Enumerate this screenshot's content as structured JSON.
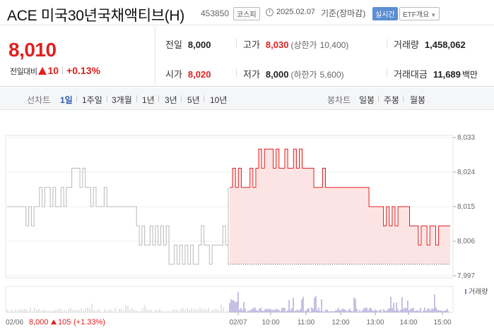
{
  "header": {
    "title": "ACE 미국30년국채액티브(H)",
    "code": "453850",
    "market": "코스피",
    "date": "2025.02.07",
    "base_label": "기준(장마감)",
    "realtime": "실시간",
    "etf_overview": "ETF개요"
  },
  "summary": {
    "price": "8,010",
    "change_label": "전일대비",
    "change_value": "10",
    "change_pct": "+0.13%",
    "prev_close_label": "전일",
    "prev_close": "8,000",
    "high_label": "고가",
    "high": "8,030",
    "upper_limit_label": "(상한가",
    "upper_limit": "10,400)",
    "volume_label": "거래량",
    "volume": "1,458,062",
    "open_label": "시가",
    "open": "8,020",
    "low_label": "저가",
    "low": "8,000",
    "lower_limit_label": "(하한가",
    "lower_limit": "5,600)",
    "amount_label": "거래대금",
    "amount": "11,689",
    "amount_unit": "백만"
  },
  "tabs": {
    "line_chart_label": "선차트",
    "periods": [
      "1일",
      "1주일",
      "3개월",
      "1년",
      "3년",
      "5년",
      "10년"
    ],
    "candle_label": "봉차트",
    "candles": [
      "일봉",
      "주봉",
      "월봉"
    ]
  },
  "colors": {
    "up": "#e02020",
    "prev_day_line": "#b9b9b9",
    "fill": "#fde4e4",
    "volume": "#8b83c9",
    "tab_active": "#2f5fb3"
  },
  "chart_data": {
    "type": "line",
    "y_ticks": [
      "8,033",
      "8,024",
      "8,015",
      "8,006",
      "7,997"
    ],
    "ylim": [
      7997,
      8033
    ],
    "x_ticks": [
      "02/07",
      "10:00",
      "11:00",
      "12:00",
      "13:00",
      "14:00",
      "15:00"
    ],
    "baseline": 8000,
    "volume_label": "거래량",
    "prev_day": {
      "date_label": "02/06",
      "close": "8,000",
      "change": "105",
      "change_pct": "(+1.33%)",
      "values": [
        8015,
        8015,
        8015,
        8015,
        8015,
        8015,
        8015,
        8010,
        8015,
        8010,
        8015,
        8015,
        8020,
        8015,
        8020,
        8020,
        8015,
        8020,
        8015,
        8015,
        8020,
        8015,
        8020,
        8020,
        8025,
        8025,
        8025,
        8020,
        8025,
        8020,
        8020,
        8015,
        8020,
        8015,
        8015,
        8015,
        8020,
        8015,
        8015,
        8015,
        8015,
        8015,
        8015,
        8015,
        8015,
        8015,
        8015,
        8015,
        8010,
        8005,
        8010,
        8005,
        8005,
        8010,
        8005,
        8010,
        8005,
        8010,
        8005,
        8010,
        8000,
        8000,
        8005,
        8000,
        8005,
        8000,
        8005,
        8000,
        8005,
        8000,
        8000,
        8005,
        8010,
        8005,
        8005,
        8000,
        8005,
        8005,
        8005,
        8005,
        8010,
        8005,
        8005
      ]
    },
    "today": {
      "values": [
        8020,
        8025,
        8020,
        8025,
        8020,
        8020,
        8020,
        8025,
        8020,
        8025,
        8030,
        8025,
        8030,
        8030,
        8030,
        8025,
        8030,
        8025,
        8025,
        8030,
        8025,
        8025,
        8030,
        8025,
        8030,
        8025,
        8025,
        8025,
        8025,
        8020,
        8020,
        8020,
        8025,
        8020,
        8020,
        8020,
        8020,
        8020,
        8020,
        8020,
        8020,
        8020,
        8020,
        8020,
        8020,
        8020,
        8020,
        8020,
        8015,
        8015,
        8015,
        8015,
        8015,
        8010,
        8015,
        8010,
        8015,
        8010,
        8015,
        8015,
        8015,
        8015,
        8010,
        8010,
        8010,
        8005,
        8010,
        8010,
        8005,
        8010,
        8010,
        8005,
        8010,
        8010,
        8010,
        8010,
        8010
      ]
    }
  }
}
